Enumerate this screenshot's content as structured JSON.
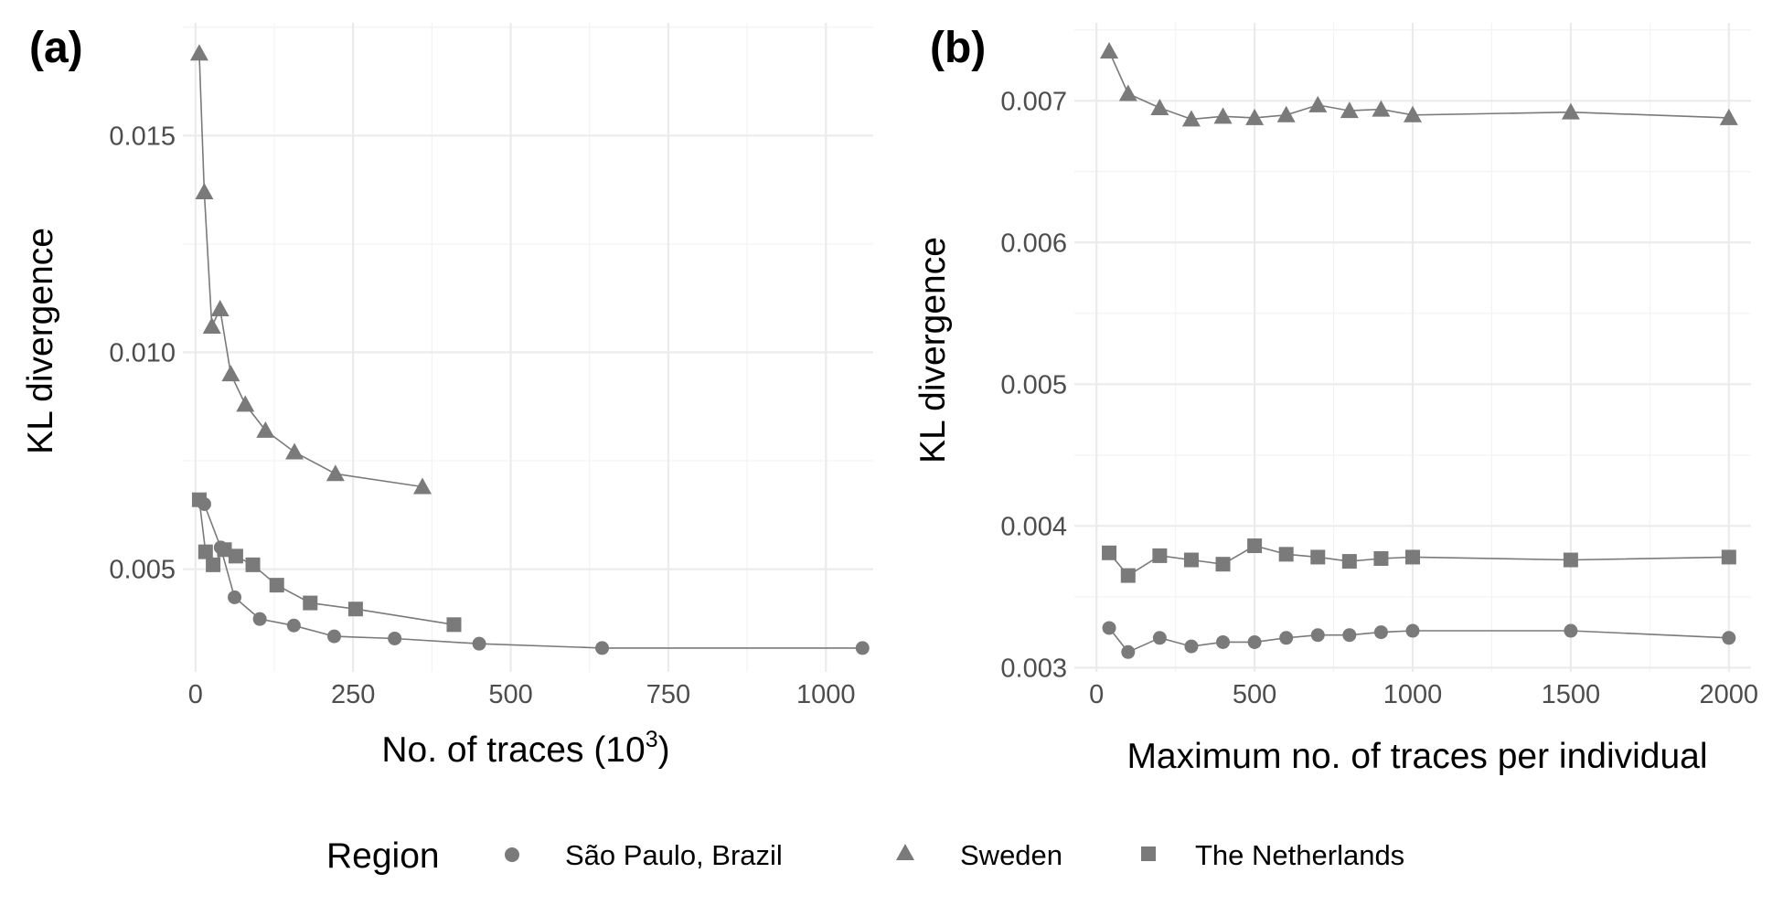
{
  "colors": {
    "marker": "#7a7a7a",
    "line": "#7a7a7a",
    "grid": "#ebebeb",
    "tick_text": "#4d4d4d"
  },
  "legend": {
    "title": "Region",
    "placement": "bottom",
    "items": [
      {
        "name": "São Paulo, Brazil",
        "shape": "circle"
      },
      {
        "name": "Sweden",
        "shape": "triangle"
      },
      {
        "name": "The Netherlands",
        "shape": "square"
      }
    ]
  },
  "chart_data": [
    {
      "type": "line",
      "panel_label": "(a)",
      "xlabel_main": "No. of traces (10",
      "xlabel_sup": "3",
      "xlabel_end": ")",
      "ylabel": "KL divergence",
      "xlim": [
        -20,
        1075
      ],
      "ylim": [
        0.00263,
        0.0176
      ],
      "x_ticks": [
        0,
        250,
        500,
        750,
        1000
      ],
      "x_tick_labels": [
        "0",
        "250",
        "500",
        "750",
        "1000"
      ],
      "y_ticks": [
        0.005,
        0.01,
        0.015
      ],
      "y_tick_labels": [
        "0.005",
        "0.010",
        "0.015"
      ],
      "grid": true,
      "series": [
        {
          "name": "São Paulo, Brazil",
          "shape": "circle",
          "points": [
            [
              14,
              0.0065
            ],
            [
              40,
              0.0055
            ],
            [
              62,
              0.00435
            ],
            [
              102,
              0.00385
            ],
            [
              156,
              0.0037
            ],
            [
              220,
              0.00345
            ],
            [
              316,
              0.0034
            ],
            [
              450,
              0.00328
            ],
            [
              645,
              0.00318
            ],
            [
              1058,
              0.00318
            ]
          ]
        },
        {
          "name": "Sweden",
          "shape": "triangle",
          "points": [
            [
              6,
              0.0169
            ],
            [
              14,
              0.0137
            ],
            [
              26,
              0.0106
            ],
            [
              39,
              0.011
            ],
            [
              56,
              0.0095
            ],
            [
              79,
              0.0088
            ],
            [
              111,
              0.0082
            ],
            [
              157,
              0.0077
            ],
            [
              222,
              0.0072
            ],
            [
              360,
              0.0069
            ]
          ]
        },
        {
          "name": "The Netherlands",
          "shape": "square",
          "points": [
            [
              6,
              0.0066
            ],
            [
              16,
              0.0054
            ],
            [
              28,
              0.0051
            ],
            [
              46,
              0.00545
            ],
            [
              64,
              0.0053
            ],
            [
              91,
              0.0051
            ],
            [
              129,
              0.00463
            ],
            [
              182,
              0.00422
            ],
            [
              254,
              0.00408
            ],
            [
              410,
              0.00372
            ]
          ]
        }
      ]
    },
    {
      "type": "line",
      "panel_label": "(b)",
      "xlabel": "Maximum no. of traces per individual",
      "ylabel": "KL divergence",
      "xlim": [
        -70,
        2070
      ],
      "ylim": [
        0.00297,
        0.00755
      ],
      "x_ticks": [
        0,
        500,
        1000,
        1500,
        2000
      ],
      "x_tick_labels": [
        "0",
        "500",
        "1000",
        "1500",
        "2000"
      ],
      "y_ticks": [
        0.003,
        0.004,
        0.005,
        0.006,
        0.007
      ],
      "y_tick_labels": [
        "0.003",
        "0.004",
        "0.005",
        "0.006",
        "0.007"
      ],
      "grid": true,
      "series": [
        {
          "name": "São Paulo, Brazil",
          "shape": "circle",
          "points": [
            [
              40,
              0.00328
            ],
            [
              100,
              0.00311
            ],
            [
              200,
              0.00321
            ],
            [
              300,
              0.00315
            ],
            [
              400,
              0.00318
            ],
            [
              500,
              0.00318
            ],
            [
              600,
              0.00321
            ],
            [
              700,
              0.00323
            ],
            [
              800,
              0.00323
            ],
            [
              900,
              0.00325
            ],
            [
              1000,
              0.00326
            ],
            [
              1500,
              0.00326
            ],
            [
              2000,
              0.00321
            ]
          ]
        },
        {
          "name": "Sweden",
          "shape": "triangle",
          "points": [
            [
              40,
              0.00735
            ],
            [
              100,
              0.00705
            ],
            [
              200,
              0.00695
            ],
            [
              300,
              0.00687
            ],
            [
              400,
              0.00689
            ],
            [
              500,
              0.00688
            ],
            [
              600,
              0.0069
            ],
            [
              700,
              0.00697
            ],
            [
              800,
              0.00693
            ],
            [
              900,
              0.00694
            ],
            [
              1000,
              0.0069
            ],
            [
              1500,
              0.00692
            ],
            [
              2000,
              0.00688
            ]
          ]
        },
        {
          "name": "The Netherlands",
          "shape": "square",
          "points": [
            [
              40,
              0.00381
            ],
            [
              100,
              0.00365
            ],
            [
              200,
              0.00379
            ],
            [
              300,
              0.00376
            ],
            [
              400,
              0.00373
            ],
            [
              500,
              0.00386
            ],
            [
              600,
              0.0038
            ],
            [
              700,
              0.00378
            ],
            [
              800,
              0.00375
            ],
            [
              900,
              0.00377
            ],
            [
              1000,
              0.00378
            ],
            [
              1500,
              0.00376
            ],
            [
              2000,
              0.00378
            ]
          ]
        }
      ]
    }
  ]
}
